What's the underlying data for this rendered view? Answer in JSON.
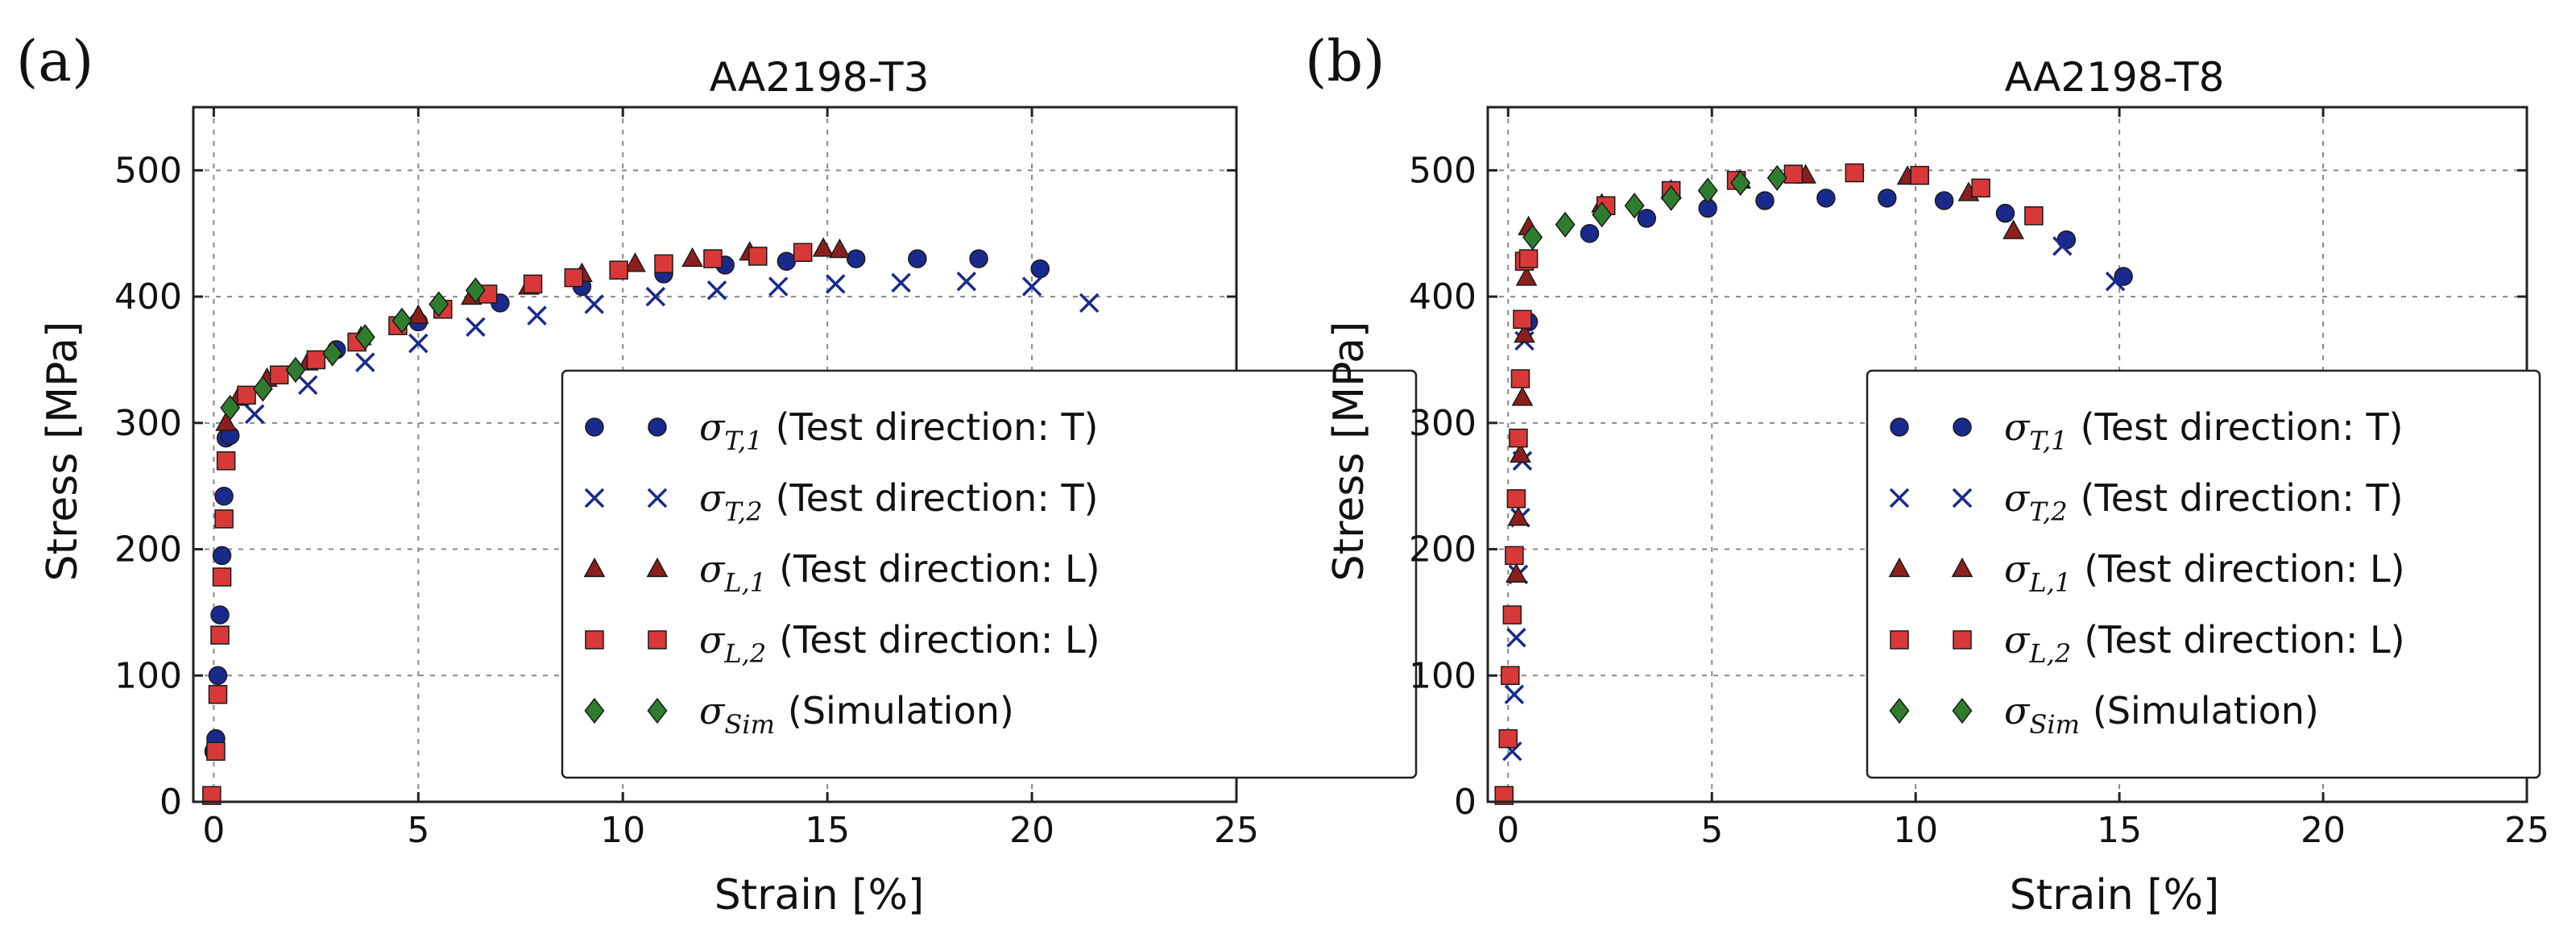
{
  "colors": {
    "sigma_T1": "#1a2a8c",
    "sigma_T2": "#1a2a8c",
    "sigma_L1": "#8b1f1f",
    "sigma_L2": "#d93838",
    "sigma_Sim": "#2e7d2e"
  },
  "legend_text": {
    "s1": {
      "sym": "σ",
      "sub": "T,1",
      "desc": "(Test direction: T)"
    },
    "s2": {
      "sym": "σ",
      "sub": "T,2",
      "desc": "(Test direction: T)"
    },
    "s3": {
      "sym": "σ",
      "sub": "L,1",
      "desc": "(Test direction: L)"
    },
    "s4": {
      "sym": "σ",
      "sub": "L,2",
      "desc": "(Test direction: L)"
    },
    "s5": {
      "sym": "σ",
      "sub": "Sim",
      "desc": "(Simulation)"
    }
  },
  "chart_data": [
    {
      "type": "scatter",
      "panel": "(a)",
      "title": "AA2198-T3",
      "xlabel": "Strain [%]",
      "ylabel": "Stress [MPa]",
      "xlim": [
        -0.5,
        25
      ],
      "ylim": [
        0,
        550
      ],
      "xticks": [
        0,
        5,
        10,
        15,
        20,
        25
      ],
      "yticks": [
        0,
        100,
        200,
        300,
        400,
        500
      ],
      "grid": true,
      "legend_position": "lower-right",
      "series": [
        {
          "name": "σT,1 (Test direction: T)",
          "marker": "circle",
          "color_key": "sigma_T1",
          "x": [
            0.0,
            0.05,
            0.1,
            0.15,
            0.2,
            0.25,
            0.3,
            0.4,
            3.0,
            5.0,
            7.0,
            9.0,
            11.0,
            12.5,
            14.0,
            15.7,
            17.2,
            18.7,
            20.2
          ],
          "y": [
            40,
            50,
            100,
            148,
            195,
            242,
            288,
            290,
            358,
            380,
            395,
            408,
            418,
            425,
            428,
            430,
            430,
            430,
            422
          ]
        },
        {
          "name": "σT,2 (Test direction: T)",
          "marker": "x",
          "color_key": "sigma_T2",
          "x": [
            1.0,
            2.3,
            3.7,
            5.0,
            6.4,
            7.9,
            9.3,
            10.8,
            12.3,
            13.8,
            15.2,
            16.8,
            18.4,
            20.0,
            21.4
          ],
          "y": [
            307,
            330,
            348,
            363,
            376,
            385,
            394,
            400,
            405,
            408,
            410,
            411,
            412,
            408,
            395
          ]
        },
        {
          "name": "σL,1 (Test direction: L)",
          "marker": "triangle",
          "color_key": "sigma_L1",
          "x": [
            0.3,
            0.6,
            1.3,
            2.3,
            3.6,
            5.0,
            6.3,
            7.7,
            9.0,
            10.3,
            11.7,
            13.1,
            14.9,
            15.3
          ],
          "y": [
            300,
            320,
            335,
            348,
            368,
            385,
            400,
            408,
            418,
            426,
            430,
            435,
            438,
            437
          ]
        },
        {
          "name": "σL,2 (Test direction: L)",
          "marker": "square",
          "color_key": "sigma_L2",
          "x": [
            -0.05,
            0.05,
            0.1,
            0.15,
            0.2,
            0.25,
            0.3,
            0.8,
            1.6,
            2.5,
            3.5,
            4.5,
            5.6,
            6.7,
            7.8,
            8.8,
            9.9,
            11.0,
            12.2,
            13.3,
            14.4
          ],
          "y": [
            5,
            40,
            85,
            132,
            178,
            224,
            270,
            322,
            338,
            350,
            364,
            377,
            390,
            402,
            410,
            415,
            421,
            426,
            430,
            432,
            435
          ]
        },
        {
          "name": "σSim (Simulation)",
          "marker": "diamond",
          "color_key": "sigma_Sim",
          "x": [
            0.4,
            1.2,
            2.0,
            2.9,
            3.7,
            4.6,
            5.5,
            6.4
          ],
          "y": [
            312,
            327,
            342,
            355,
            368,
            381,
            394,
            405
          ]
        }
      ]
    },
    {
      "type": "scatter",
      "panel": "(b)",
      "title": "AA2198-T8",
      "xlabel": "Strain [%]",
      "ylabel": "Stress [MPa]",
      "xlim": [
        -0.5,
        25
      ],
      "ylim": [
        0,
        550
      ],
      "xticks": [
        0,
        5,
        10,
        15,
        20,
        25
      ],
      "yticks": [
        0,
        100,
        200,
        300,
        400,
        500
      ],
      "grid": true,
      "legend_position": "lower-right",
      "series": [
        {
          "name": "σT,1 (Test direction: T)",
          "marker": "circle",
          "color_key": "sigma_T1",
          "x": [
            0.5,
            2.0,
            3.4,
            4.9,
            6.3,
            7.8,
            9.3,
            10.7,
            12.2,
            13.7,
            15.1
          ],
          "y": [
            380,
            450,
            462,
            470,
            476,
            478,
            478,
            476,
            466,
            445,
            416
          ]
        },
        {
          "name": "σT,2 (Test direction: T)",
          "marker": "x",
          "color_key": "sigma_T2",
          "x": [
            0.1,
            0.15,
            0.2,
            0.25,
            0.3,
            0.35,
            0.4,
            13.6,
            14.9
          ],
          "y": [
            40,
            85,
            130,
            180,
            225,
            270,
            365,
            440,
            412
          ]
        },
        {
          "name": "σL,1 (Test direction: L)",
          "marker": "triangle",
          "color_key": "sigma_L1",
          "x": [
            0.2,
            0.25,
            0.3,
            0.35,
            0.4,
            0.45,
            0.5,
            2.3,
            4.0,
            5.7,
            7.3,
            9.8,
            11.3,
            12.4
          ],
          "y": [
            180,
            225,
            275,
            320,
            370,
            415,
            455,
            473,
            484,
            492,
            496,
            495,
            482,
            452
          ]
        },
        {
          "name": "σL,2 (Test direction: L)",
          "marker": "square",
          "color_key": "sigma_L2",
          "x": [
            -0.1,
            0.0,
            0.05,
            0.1,
            0.15,
            0.2,
            0.25,
            0.3,
            0.35,
            0.4,
            0.5,
            2.4,
            4.0,
            5.6,
            7.0,
            8.5,
            10.1,
            11.6,
            12.9
          ],
          "y": [
            5,
            50,
            100,
            148,
            195,
            240,
            288,
            335,
            382,
            428,
            430,
            472,
            484,
            492,
            497,
            498,
            496,
            486,
            464
          ]
        },
        {
          "name": "σSim (Simulation)",
          "marker": "diamond",
          "color_key": "sigma_Sim",
          "x": [
            0.6,
            1.4,
            2.3,
            3.1,
            4.0,
            4.9,
            5.7,
            6.6
          ],
          "y": [
            447,
            457,
            465,
            472,
            478,
            484,
            490,
            494
          ]
        }
      ]
    }
  ]
}
